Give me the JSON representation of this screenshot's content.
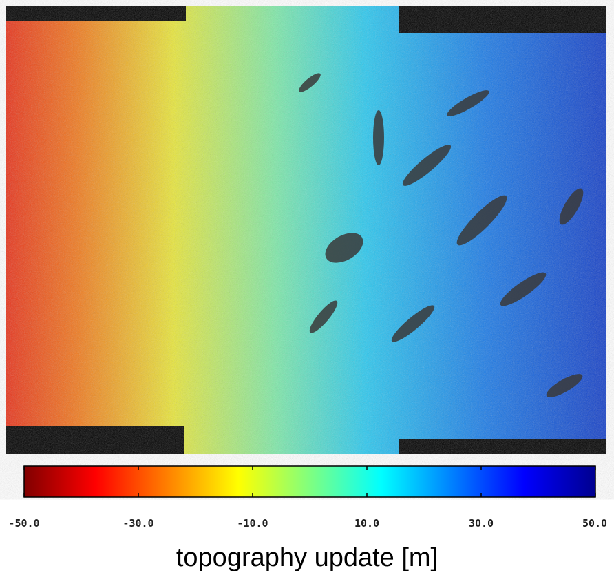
{
  "colorbar": {
    "lim": [
      -50,
      50
    ],
    "ticks": [
      {
        "value": -50,
        "label": "-50.0"
      },
      {
        "value": -30,
        "label": "-30.0"
      },
      {
        "value": -10,
        "label": "-10.0"
      },
      {
        "value": 10,
        "label": "10.0"
      },
      {
        "value": 30,
        "label": "30.0"
      },
      {
        "value": 50,
        "label": "50.0"
      }
    ],
    "colormap": [
      "#800000",
      "#ff0000",
      "#ffff00",
      "#00ffff",
      "#0000ff",
      "#00008f"
    ],
    "label": "topography update [m]"
  }
}
